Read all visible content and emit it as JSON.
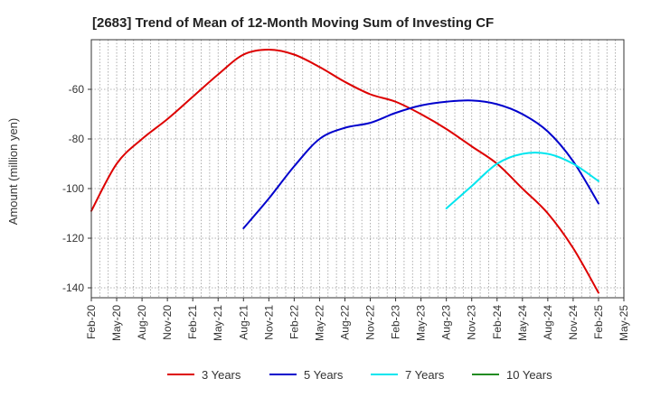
{
  "chart_data": {
    "type": "line",
    "title": "[2683]  Trend of Mean of 12-Month Moving Sum of Investing CF",
    "xlabel": "",
    "ylabel": "Amount (million yen)",
    "ylim": [
      -144,
      -40
    ],
    "yticks": [
      -140,
      -120,
      -100,
      -80,
      -60
    ],
    "x_tick_labels": [
      "Feb-20",
      "May-20",
      "Aug-20",
      "Nov-20",
      "Feb-21",
      "May-21",
      "Aug-21",
      "Nov-21",
      "Feb-22",
      "May-22",
      "Aug-22",
      "Nov-22",
      "Feb-23",
      "May-23",
      "Aug-23",
      "Nov-23",
      "Feb-24",
      "May-24",
      "Aug-24",
      "Nov-24",
      "Feb-25",
      "May-25"
    ],
    "grid": true,
    "legend_position": "bottom",
    "series": [
      {
        "name": "3 Years",
        "color": "#dd0000",
        "x": [
          "2020-02",
          "2020-05",
          "2020-08",
          "2020-11",
          "2021-02",
          "2021-05",
          "2021-08",
          "2021-11",
          "2022-02",
          "2022-05",
          "2022-08",
          "2022-11",
          "2023-02",
          "2023-05",
          "2023-08",
          "2023-11",
          "2024-02",
          "2024-05",
          "2024-08",
          "2024-11",
          "2025-02"
        ],
        "values": [
          -109,
          -90,
          -80,
          -72,
          -63,
          -54,
          -46,
          -44,
          -46,
          -51,
          -57,
          -62,
          -65,
          -70,
          -76,
          -83,
          -90,
          -100,
          -110,
          -124,
          -142
        ]
      },
      {
        "name": "5 Years",
        "color": "#0000cc",
        "x": [
          "2021-08",
          "2021-11",
          "2022-02",
          "2022-05",
          "2022-08",
          "2022-11",
          "2023-02",
          "2023-05",
          "2023-08",
          "2023-11",
          "2024-02",
          "2024-05",
          "2024-08",
          "2024-11",
          "2025-02"
        ],
        "values": [
          -116,
          -104,
          -91,
          -80,
          -75.5,
          -73.5,
          -69.5,
          -66.5,
          -65,
          -64.5,
          -66,
          -70,
          -77,
          -89,
          -106
        ]
      },
      {
        "name": "7 Years",
        "color": "#00e5ee",
        "x": [
          "2023-08",
          "2023-11",
          "2024-02",
          "2024-05",
          "2024-08",
          "2024-11",
          "2025-02"
        ],
        "values": [
          -108,
          -99,
          -90,
          -86,
          -86,
          -90,
          -97
        ]
      },
      {
        "name": "10 Years",
        "color": "#228b22",
        "x": [],
        "values": []
      }
    ]
  }
}
